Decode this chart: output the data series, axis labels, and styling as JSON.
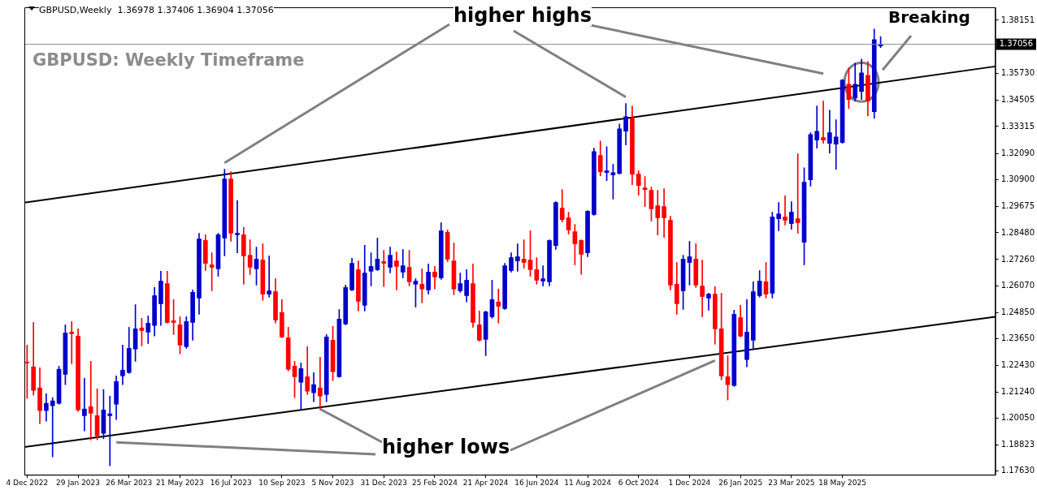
{
  "chart_data": {
    "type": "candlestick",
    "title": "GBPUSD: Weekly Timeframe",
    "subtitle": "GBPUSD,Weekly  1.36978 1.37406 1.36904 1.37056",
    "annotations": [
      "higher highs",
      {
        "text": "higher lows",
        "x": "2023-10-22",
        "y": 1.2046
      },
      "Breaking"
    ],
    "x": [
      "2022-12-04",
      "2022-12-11",
      "2022-12-18",
      "2022-12-25",
      "2023-01-01",
      "2023-01-08",
      "2023-01-15",
      "2023-01-22",
      "2023-01-29",
      "2023-02-05",
      "2023-02-12",
      "2023-02-19",
      "2023-02-26",
      "2023-03-05",
      "2023-03-12",
      "2023-03-19",
      "2023-03-26",
      "2023-04-02",
      "2023-04-09",
      "2023-04-16",
      "2023-04-23",
      "2023-04-30",
      "2023-05-07",
      "2023-05-14",
      "2023-05-21",
      "2023-05-28",
      "2023-06-04",
      "2023-06-11",
      "2023-06-18",
      "2023-06-25",
      "2023-07-02",
      "2023-07-09",
      "2023-07-16",
      "2023-07-23",
      "2023-07-30",
      "2023-08-06",
      "2023-08-13",
      "2023-08-20",
      "2023-08-27",
      "2023-09-03",
      "2023-09-10",
      "2023-09-17",
      "2023-09-24",
      "2023-10-01",
      "2023-10-08",
      "2023-10-15",
      "2023-10-22",
      "2023-10-29",
      "2023-11-05",
      "2023-11-12",
      "2023-11-19",
      "2023-11-26",
      "2023-12-03",
      "2023-12-10",
      "2023-12-17",
      "2023-12-24",
      "2023-12-31",
      "2024-01-07",
      "2024-01-14",
      "2024-01-21",
      "2024-01-28",
      "2024-02-04",
      "2024-02-11",
      "2024-02-18",
      "2024-02-25",
      "2024-03-03",
      "2024-03-10",
      "2024-03-17",
      "2024-03-24",
      "2024-03-31",
      "2024-04-07",
      "2024-04-14",
      "2024-04-21",
      "2024-04-28",
      "2024-05-05",
      "2024-05-12",
      "2024-05-19",
      "2024-05-26",
      "2024-06-02",
      "2024-06-09",
      "2024-06-16",
      "2024-06-23",
      "2024-06-30",
      "2024-07-07",
      "2024-07-14",
      "2024-07-21",
      "2024-07-28",
      "2024-08-04",
      "2024-08-11",
      "2024-08-18",
      "2024-08-25",
      "2024-09-01",
      "2024-09-08",
      "2024-09-15",
      "2024-09-22",
      "2024-09-29",
      "2024-10-06",
      "2024-10-13",
      "2024-10-20",
      "2024-10-27",
      "2024-11-03",
      "2024-11-10",
      "2024-11-17",
      "2024-11-24",
      "2024-12-01",
      "2024-12-08",
      "2024-12-15",
      "2024-12-22",
      "2024-12-29",
      "2025-01-05",
      "2025-01-12",
      "2025-01-19",
      "2025-01-26",
      "2025-02-02",
      "2025-02-09",
      "2025-02-16",
      "2025-02-23",
      "2025-03-02",
      "2025-03-09",
      "2025-03-16",
      "2025-03-23",
      "2025-03-30",
      "2025-04-06",
      "2025-04-13",
      "2025-04-20",
      "2025-04-27",
      "2025-05-04",
      "2025-05-11",
      "2025-05-18",
      "2025-05-25",
      "2025-06-01",
      "2025-06-08",
      "2025-06-15",
      "2025-06-22",
      "2025-06-29"
    ],
    "ohlc": [
      [
        1.226,
        1.2337,
        1.2094,
        1.2256
      ],
      [
        1.2238,
        1.244,
        1.2109,
        1.2131
      ],
      [
        1.2142,
        1.2234,
        1.198,
        1.2039
      ],
      [
        1.2039,
        1.2116,
        1.1991,
        1.2072
      ],
      [
        1.2061,
        1.2098,
        1.1828,
        1.2083
      ],
      [
        1.2072,
        1.2241,
        1.2068,
        1.2227
      ],
      [
        1.2204,
        1.2429,
        1.2157,
        1.2392
      ],
      [
        1.2396,
        1.2444,
        1.2252,
        1.2389
      ],
      [
        1.2378,
        1.2411,
        1.2035,
        1.2042
      ],
      [
        1.2016,
        1.2186,
        1.1946,
        1.2046
      ],
      [
        1.2057,
        1.2263,
        1.1906,
        1.2027
      ],
      [
        1.2016,
        1.2138,
        1.1906,
        1.1924
      ],
      [
        1.1935,
        1.2135,
        1.191,
        1.2042
      ],
      [
        1.2016,
        1.2105,
        1.1788,
        1.2024
      ],
      [
        1.2068,
        1.2197,
        1.1998,
        1.2171
      ],
      [
        1.2197,
        1.2337,
        1.2157,
        1.2223
      ],
      [
        1.2212,
        1.2418,
        1.2208,
        1.2322
      ],
      [
        1.2319,
        1.2521,
        1.2263,
        1.2411
      ],
      [
        1.2415,
        1.2459,
        1.2333,
        1.2403
      ],
      [
        1.2396,
        1.247,
        1.2344,
        1.2437
      ],
      [
        1.2426,
        1.2599,
        1.2378,
        1.2562
      ],
      [
        1.2525,
        1.2673,
        1.2426,
        1.2628
      ],
      [
        1.2617,
        1.2673,
        1.2437,
        1.244
      ],
      [
        1.2448,
        1.2544,
        1.2385,
        1.244
      ],
      [
        1.2429,
        1.2466,
        1.2297,
        1.2337
      ],
      [
        1.233,
        1.2466,
        1.2322,
        1.2444
      ],
      [
        1.244,
        1.2588,
        1.2359,
        1.2577
      ],
      [
        1.2551,
        1.2846,
        1.2477,
        1.282
      ],
      [
        1.2813,
        1.2839,
        1.2676,
        1.2709
      ],
      [
        1.2702,
        1.2757,
        1.2584,
        1.2691
      ],
      [
        1.2684,
        1.2846,
        1.265,
        1.2839
      ],
      [
        1.2824,
        1.3137,
        1.2743,
        1.3093
      ],
      [
        1.3093,
        1.3126,
        1.2809,
        1.2846
      ],
      [
        1.2839,
        1.2994,
        1.2757,
        1.2846
      ],
      [
        1.2839,
        1.2872,
        1.2614,
        1.2743
      ],
      [
        1.2746,
        1.2816,
        1.2658,
        1.2691
      ],
      [
        1.2684,
        1.2783,
        1.261,
        1.2728
      ],
      [
        1.2724,
        1.2798,
        1.254,
        1.2569
      ],
      [
        1.2569,
        1.2743,
        1.2555,
        1.2584
      ],
      [
        1.258,
        1.2639,
        1.2437,
        1.2451
      ],
      [
        1.2485,
        1.2544,
        1.237,
        1.2374
      ],
      [
        1.237,
        1.2418,
        1.2219,
        1.2227
      ],
      [
        1.2241,
        1.2263,
        1.2098,
        1.2193
      ],
      [
        1.2168,
        1.2256,
        1.2046,
        1.223
      ],
      [
        1.2193,
        1.233,
        1.2112,
        1.2127
      ],
      [
        1.212,
        1.2212,
        1.2079,
        1.2157
      ],
      [
        1.2142,
        1.2282,
        1.2046,
        1.2105
      ],
      [
        1.2112,
        1.2385,
        1.2079,
        1.2374
      ],
      [
        1.2359,
        1.2422,
        1.2175,
        1.2216
      ],
      [
        1.2193,
        1.2499,
        1.219,
        1.2455
      ],
      [
        1.2433,
        1.261,
        1.2429,
        1.2599
      ],
      [
        1.2588,
        1.2732,
        1.2584,
        1.2709
      ],
      [
        1.268,
        1.272,
        1.2492,
        1.2536
      ],
      [
        1.2518,
        1.2791,
        1.2492,
        1.2665
      ],
      [
        1.2673,
        1.2757,
        1.2606,
        1.2695
      ],
      [
        1.268,
        1.2824,
        1.2676,
        1.2728
      ],
      [
        1.2717,
        1.2768,
        1.2603,
        1.2709
      ],
      [
        1.2691,
        1.2783,
        1.2665,
        1.2746
      ],
      [
        1.272,
        1.2761,
        1.2588,
        1.2695
      ],
      [
        1.2669,
        1.2772,
        1.2643,
        1.2698
      ],
      [
        1.2691,
        1.2768,
        1.2606,
        1.2625
      ],
      [
        1.2614,
        1.2639,
        1.251,
        1.2628
      ],
      [
        1.2614,
        1.2684,
        1.2529,
        1.2592
      ],
      [
        1.2588,
        1.2706,
        1.2569,
        1.2669
      ],
      [
        1.2669,
        1.2695,
        1.2592,
        1.2647
      ],
      [
        1.2643,
        1.2894,
        1.2636,
        1.2857
      ],
      [
        1.285,
        1.2861,
        1.2717,
        1.2728
      ],
      [
        1.272,
        1.2802,
        1.2566,
        1.2592
      ],
      [
        1.2584,
        1.2665,
        1.2577,
        1.2617
      ],
      [
        1.2562,
        1.268,
        1.2533,
        1.2632
      ],
      [
        1.2617,
        1.2706,
        1.2418,
        1.244
      ],
      [
        1.2429,
        1.2492,
        1.2355,
        1.2359
      ],
      [
        1.2363,
        1.2492,
        1.2289,
        1.2488
      ],
      [
        1.2466,
        1.2632,
        1.2459,
        1.2544
      ],
      [
        1.2533,
        1.2592,
        1.2437,
        1.2514
      ],
      [
        1.2503,
        1.2709,
        1.2499,
        1.2698
      ],
      [
        1.2676,
        1.2757,
        1.2669,
        1.2735
      ],
      [
        1.272,
        1.2798,
        1.2673,
        1.2739
      ],
      [
        1.2728,
        1.2816,
        1.2687,
        1.2713
      ],
      [
        1.2724,
        1.2857,
        1.265,
        1.268
      ],
      [
        1.268,
        1.2735,
        1.2614,
        1.2632
      ],
      [
        1.2628,
        1.2698,
        1.2606,
        1.2639
      ],
      [
        1.2625,
        1.2816,
        1.2606,
        1.2813
      ],
      [
        1.279,
        1.299,
        1.2772,
        1.2986
      ],
      [
        1.296,
        1.3045,
        1.2897,
        1.2908
      ],
      [
        1.2916,
        1.2942,
        1.2842,
        1.2861
      ],
      [
        1.2853,
        1.2886,
        1.2702,
        1.2798
      ],
      [
        1.2813,
        1.2816,
        1.2658,
        1.275
      ],
      [
        1.2757,
        1.2949,
        1.2739,
        1.2946
      ],
      [
        1.2931,
        1.3233,
        1.2927,
        1.3218
      ],
      [
        1.32,
        1.3266,
        1.3107,
        1.3126
      ],
      [
        1.3122,
        1.324,
        1.3085,
        1.313
      ],
      [
        1.3111,
        1.3159,
        1.3001,
        1.3122
      ],
      [
        1.3118,
        1.3343,
        1.3115,
        1.3321
      ],
      [
        1.331,
        1.3436,
        1.3248,
        1.3376
      ],
      [
        1.3369,
        1.3425,
        1.3067,
        1.3115
      ],
      [
        1.3115,
        1.313,
        1.3019,
        1.3063
      ],
      [
        1.3052,
        1.3104,
        1.2967,
        1.3045
      ],
      [
        1.3041,
        1.3056,
        1.2901,
        1.2957
      ],
      [
        1.2971,
        1.3041,
        1.2838,
        1.2916
      ],
      [
        1.2967,
        1.3049,
        1.2827,
        1.2916
      ],
      [
        1.2905,
        1.2923,
        1.2588,
        1.261
      ],
      [
        1.2614,
        1.2713,
        1.2477,
        1.2525
      ],
      [
        1.2584,
        1.2746,
        1.2499,
        1.2728
      ],
      [
        1.2713,
        1.2809,
        1.261,
        1.2739
      ],
      [
        1.2728,
        1.2798,
        1.2599,
        1.261
      ],
      [
        1.2606,
        1.2724,
        1.2466,
        1.2558
      ],
      [
        1.2551,
        1.2573,
        1.2496,
        1.2569
      ],
      [
        1.2569,
        1.2603,
        1.2341,
        1.2411
      ],
      [
        1.2411,
        1.2573,
        1.2179,
        1.2197
      ],
      [
        1.2193,
        1.2289,
        1.2087,
        1.2157
      ],
      [
        1.2153,
        1.2496,
        1.2149,
        1.2477
      ],
      [
        1.2462,
        1.2518,
        1.2374,
        1.2378
      ],
      [
        1.2271,
        1.2544,
        1.2238,
        1.2396
      ],
      [
        1.2359,
        1.2625,
        1.2322,
        1.258
      ],
      [
        1.2562,
        1.2676,
        1.2555,
        1.2628
      ],
      [
        1.2625,
        1.2713,
        1.2551,
        1.2569
      ],
      [
        1.2573,
        1.2942,
        1.2551,
        1.292
      ],
      [
        1.2912,
        1.2986,
        1.2857,
        1.2934
      ],
      [
        1.292,
        1.3016,
        1.2883,
        1.2905
      ],
      [
        1.289,
        1.299,
        1.2864,
        1.2942
      ],
      [
        1.2912,
        1.3207,
        1.2846,
        1.2894
      ],
      [
        1.2805,
        1.3144,
        1.2702,
        1.3078
      ],
      [
        1.3089,
        1.3303,
        1.306,
        1.3295
      ],
      [
        1.327,
        1.3425,
        1.3233,
        1.331
      ],
      [
        1.3281,
        1.3447,
        1.3255,
        1.327
      ],
      [
        1.3255,
        1.3406,
        1.3211,
        1.3303
      ],
      [
        1.3251,
        1.3362,
        1.3137,
        1.3284
      ],
      [
        1.3259,
        1.3546,
        1.3255,
        1.3542
      ],
      [
        1.3524,
        1.3598,
        1.3413,
        1.3454
      ],
      [
        1.3461,
        1.362,
        1.3447,
        1.3524
      ],
      [
        1.3491,
        1.3638,
        1.3454,
        1.3576
      ],
      [
        1.3565,
        1.3627,
        1.338,
        1.3447
      ],
      [
        1.3399,
        1.3775,
        1.3369,
        1.3727
      ],
      [
        1.36978,
        1.37406,
        1.36904,
        1.37056
      ]
    ],
    "colors": [
      "#ff0000",
      "#ff0000",
      "#ff0000",
      "#0000cd",
      "#0000cd",
      "#0000cd",
      "#0000cd",
      "#ff0000",
      "#ff0000",
      "#0000cd",
      "#ff0000",
      "#ff0000",
      "#0000cd",
      "#0000cd",
      "#0000cd",
      "#0000cd",
      "#0000cd",
      "#0000cd",
      "#ff0000",
      "#0000cd",
      "#0000cd",
      "#0000cd",
      "#ff0000",
      "#ff0000",
      "#ff0000",
      "#0000cd",
      "#0000cd",
      "#0000cd",
      "#ff0000",
      "#ff0000",
      "#0000cd",
      "#0000cd",
      "#ff0000",
      "#0000cd",
      "#ff0000",
      "#ff0000",
      "#0000cd",
      "#ff0000",
      "#0000cd",
      "#ff0000",
      "#ff0000",
      "#ff0000",
      "#ff0000",
      "#0000cd",
      "#ff0000",
      "#0000cd",
      "#ff0000",
      "#0000cd",
      "#ff0000",
      "#0000cd",
      "#0000cd",
      "#0000cd",
      "#ff0000",
      "#0000cd",
      "#0000cd",
      "#0000cd",
      "#ff0000",
      "#0000cd",
      "#ff0000",
      "#0000cd",
      "#ff0000",
      "#0000cd",
      "#ff0000",
      "#0000cd",
      "#ff0000",
      "#0000cd",
      "#ff0000",
      "#ff0000",
      "#0000cd",
      "#0000cd",
      "#ff0000",
      "#ff0000",
      "#0000cd",
      "#0000cd",
      "#ff0000",
      "#0000cd",
      "#0000cd",
      "#0000cd",
      "#ff0000",
      "#ff0000",
      "#ff0000",
      "#0000cd",
      "#0000cd",
      "#0000cd",
      "#ff0000",
      "#ff0000",
      "#ff0000",
      "#ff0000",
      "#0000cd",
      "#0000cd",
      "#ff0000",
      "#0000cd",
      "#0000cd",
      "#0000cd",
      "#0000cd",
      "#ff0000",
      "#ff0000",
      "#ff0000",
      "#ff0000",
      "#ff0000",
      "#ff0000",
      "#ff0000",
      "#ff0000",
      "#0000cd",
      "#0000cd",
      "#ff0000",
      "#ff0000",
      "#0000cd",
      "#ff0000",
      "#ff0000",
      "#ff0000",
      "#0000cd",
      "#ff0000",
      "#0000cd",
      "#0000cd",
      "#0000cd",
      "#ff0000",
      "#0000cd",
      "#0000cd",
      "#ff0000",
      "#0000cd",
      "#ff0000",
      "#0000cd",
      "#0000cd",
      "#0000cd",
      "#ff0000",
      "#0000cd",
      "#0000cd",
      "#0000cd",
      "#ff0000",
      "#0000cd",
      "#0000cd",
      "#ff0000",
      "#0000cd",
      "#0000cd"
    ],
    "series": [
      {
        "type": "line",
        "color": "#000000",
        "x": [
          "2022-12-01",
          "2025-11-02"
        ],
        "values": [
          1.2985,
          1.3605
        ]
      },
      {
        "type": "line",
        "color": "#000000",
        "x": [
          "2022-12-01",
          "2025-11-02"
        ],
        "values": [
          1.1873,
          1.2466
        ]
      }
    ],
    "ref_lines": [
      {
        "axis": "y",
        "value": 1.37056,
        "label": "1.37056",
        "color": "#7f8fa0"
      }
    ],
    "xlim": [
      "2022-12-01",
      "2025-11-02"
    ],
    "ylim": [
      1.1747,
      1.3874
    ],
    "xticks": [
      {
        "value": "2022-12-04",
        "label": "4 Dec 2022"
      },
      {
        "value": "2023-01-29",
        "label": "29 Jan 2023"
      },
      {
        "value": "2023-03-26",
        "label": "26 Mar 2023"
      },
      {
        "value": "2023-05-21",
        "label": "21 May 2023"
      },
      {
        "value": "2023-07-16",
        "label": "16 Jul 2023"
      },
      {
        "value": "2023-09-10",
        "label": "10 Sep 2023"
      },
      {
        "value": "2023-11-05",
        "label": "5 Nov 2023"
      },
      {
        "value": "2023-12-31",
        "label": "31 Dec 2023"
      },
      {
        "value": "2024-02-25",
        "label": "25 Feb 2024"
      },
      {
        "value": "2024-04-21",
        "label": "21 Apr 2024"
      },
      {
        "value": "2024-06-16",
        "label": "16 Jun 2024"
      },
      {
        "value": "2024-08-11",
        "label": "11 Aug 2024"
      },
      {
        "value": "2024-10-06",
        "label": "6 Oct 2024"
      },
      {
        "value": "2024-12-01",
        "label": "1 Dec 2024"
      },
      {
        "value": "2025-01-26",
        "label": "26 Jan 2025"
      },
      {
        "value": "2025-03-23",
        "label": "23 Mar 2025"
      },
      {
        "value": "2025-05-18",
        "label": "18 May 2025"
      }
    ],
    "yticks": [
      {
        "value": 1.1763,
        "label": "1.17630"
      },
      {
        "value": 1.18823,
        "label": "1.18823"
      },
      {
        "value": 1.2005,
        "label": "1.20050"
      },
      {
        "value": 1.2124,
        "label": "1.21240"
      },
      {
        "value": 1.2243,
        "label": "1.22430"
      },
      {
        "value": 1.2365,
        "label": "1.23650"
      },
      {
        "value": 1.2485,
        "label": "1.24850"
      },
      {
        "value": 1.2607,
        "label": "1.26070"
      },
      {
        "value": 1.2726,
        "label": "1.27260"
      },
      {
        "value": 1.2848,
        "label": "1.28480"
      },
      1.29675,
      {
        "value": 1.309,
        "label": "1.30900"
      },
      {
        "value": 1.3209,
        "label": "1.32090"
      },
      1.33315,
      1.34505,
      {
        "value": 1.3573,
        "label": "1.35730"
      },
      1.38151
    ]
  }
}
